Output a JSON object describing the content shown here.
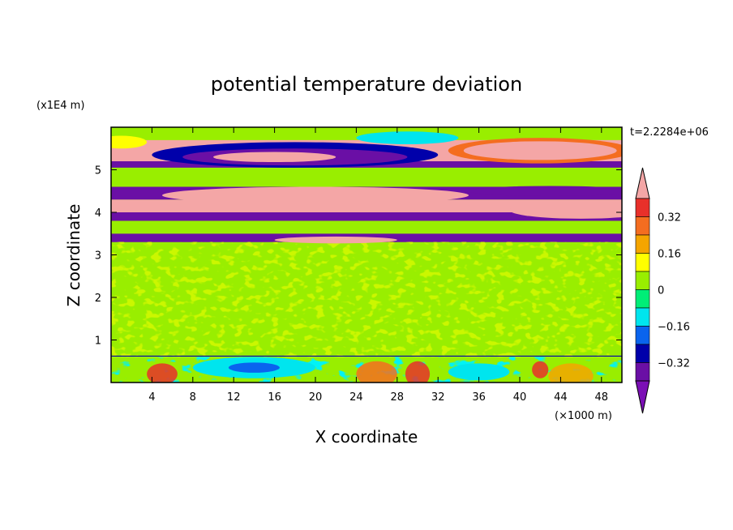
{
  "chart_data": {
    "type": "heatmap",
    "title": "potential temperature deviation",
    "xlabel": "X coordinate",
    "ylabel": "Z coordinate",
    "x_unit": "(×1000 m)",
    "y_unit": "(x1E4 m)",
    "time_label": "t=2.2284e+06",
    "xlim": [
      0,
      50
    ],
    "ylim": [
      0,
      6
    ],
    "x_ticks": [
      4,
      8,
      12,
      16,
      20,
      24,
      28,
      32,
      36,
      40,
      44,
      48
    ],
    "y_ticks": [
      1,
      2,
      3,
      4,
      5
    ],
    "colorbar": {
      "levels": [
        -0.4,
        -0.32,
        -0.24,
        -0.16,
        -0.08,
        0,
        0.08,
        0.16,
        0.24,
        0.32,
        0.4
      ],
      "tick_labels": [
        "0.32",
        "0.16",
        "0",
        "-0.16",
        "-0.32"
      ],
      "colors_top_to_bottom": [
        "#f4a6a6",
        "#e8302a",
        "#f46d20",
        "#f5a500",
        "#ffff00",
        "#99ee00",
        "#00ee77",
        "#00e5ee",
        "#0a64ee",
        "#0000aa",
        "#6a0fa5",
        "#7b0fb5"
      ]
    },
    "bands": [
      {
        "z_from": 0.0,
        "z_to": 0.6,
        "value": 0.0
      },
      {
        "z_from": 0.6,
        "z_to": 3.3,
        "value": 0.02
      },
      {
        "z_from": 3.3,
        "z_to": 3.5,
        "value": -0.36
      },
      {
        "z_from": 3.5,
        "z_to": 3.8,
        "value": 0.04
      },
      {
        "z_from": 3.8,
        "z_to": 4.0,
        "value": -0.4
      },
      {
        "z_from": 4.0,
        "z_to": 4.3,
        "value": 0.4
      },
      {
        "z_from": 4.3,
        "z_to": 4.6,
        "value": -0.4
      },
      {
        "z_from": 4.6,
        "z_to": 5.05,
        "value": 0.02
      },
      {
        "z_from": 5.05,
        "z_to": 5.2,
        "value": -0.36
      },
      {
        "z_from": 5.2,
        "z_to": 5.7,
        "value": 0.4
      },
      {
        "z_from": 5.7,
        "z_to": 6.0,
        "value": 0.06
      }
    ]
  }
}
